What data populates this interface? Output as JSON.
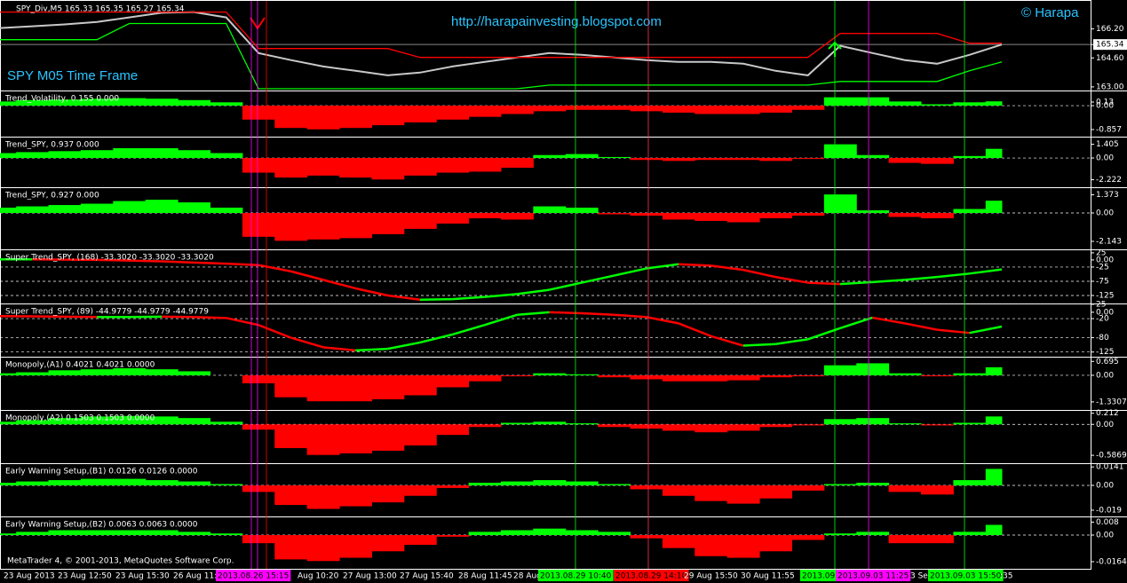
{
  "chart_data": [
    {
      "type": "price",
      "title": "SPY_Div,M5  165.33 165.35 165.27 165.34",
      "annotations": [
        "http://harapainvesting.blogspot.com",
        "© Harapa",
        "SPY M05 Time Frame"
      ],
      "series": [
        {
          "color": "#c8c8c8",
          "values": [
            166.25,
            166.35,
            166.45,
            166.59,
            166.84,
            167.09,
            167.13,
            166.84,
            164.87,
            164.48,
            164.13,
            163.89,
            163.64,
            163.79,
            164.13,
            164.38,
            164.63,
            164.87,
            164.77,
            164.63,
            164.48,
            164.38,
            164.38,
            164.28,
            163.89,
            163.64,
            165.27,
            164.87,
            164.48,
            164.28,
            164.77,
            165.34
          ]
        },
        {
          "color": "#ff0000",
          "values": [
            167.13,
            167.13,
            167.13,
            167.13,
            167.13,
            167.13,
            167.13,
            167.13,
            165.12,
            165.12,
            165.12,
            165.12,
            165.12,
            164.63,
            164.63,
            164.63,
            164.63,
            164.63,
            164.63,
            164.63,
            164.63,
            164.63,
            164.63,
            164.63,
            164.63,
            164.63,
            165.95,
            165.95,
            165.95,
            165.95,
            165.41,
            165.41
          ]
        },
        {
          "color": "#00ff00",
          "values": [
            165.61,
            165.61,
            165.61,
            165.61,
            166.5,
            166.5,
            166.5,
            166.5,
            162.9,
            162.9,
            162.9,
            162.9,
            162.9,
            162.9,
            162.9,
            162.9,
            162.9,
            163.1,
            163.1,
            163.1,
            163.1,
            163.1,
            163.1,
            163.1,
            163.1,
            163.1,
            163.3,
            163.3,
            163.3,
            163.3,
            163.89,
            164.38
          ]
        }
      ],
      "ylim": [
        162.8,
        167.7
      ],
      "yticks": [
        {
          "value": 166.2,
          "label": "166.20"
        },
        165.34,
        {
          "value": 164.6,
          "label": "164.60"
        },
        {
          "value": 163.0,
          "label": "163.00"
        }
      ]
    },
    {
      "type": "bar",
      "title": "Trend_Volatility, 0.155 0.000",
      "colors": {
        "positive": "#00ff00",
        "negative": "#ff0000"
      },
      "values": [
        0.15,
        0.2,
        0.22,
        0.25,
        0.27,
        0.25,
        0.2,
        0.12,
        -0.5,
        -0.8,
        -0.85,
        -0.8,
        -0.7,
        -0.6,
        -0.5,
        -0.4,
        -0.3,
        -0.2,
        -0.15,
        -0.15,
        -0.2,
        -0.25,
        -0.3,
        -0.3,
        -0.25,
        -0.15,
        0.3,
        0.3,
        0.15,
        0.05,
        0.12,
        0.155
      ],
      "ylim": [
        -1.08,
        0.48
      ],
      "yticks": [
        0.13,
        {
          "value": 0,
          "label": "0.00"
        },
        -0.857
      ]
    },
    {
      "type": "bar",
      "title": "Trend_SPY,  0.937 0.000",
      "colors": {
        "positive": "#00ff00",
        "negative": "#ff0000"
      },
      "values": [
        0.5,
        0.6,
        0.7,
        0.8,
        1.0,
        1.0,
        0.8,
        0.5,
        -1.5,
        -2.0,
        -1.8,
        -2.0,
        -2.2,
        -1.8,
        -1.5,
        -1.4,
        -1.0,
        0.3,
        0.4,
        0.1,
        -0.2,
        -0.3,
        -0.2,
        -0.2,
        -0.3,
        -0.1,
        1.4,
        0.3,
        -0.5,
        -0.6,
        0.2,
        0.937
      ],
      "ylim": [
        -2.9,
        2.0
      ],
      "yticks": [
        1.405,
        {
          "value": 0,
          "label": "0.00"
        },
        -2.222
      ]
    },
    {
      "type": "bar",
      "title": "Trend_SPY,  0.927 0.000",
      "colors": {
        "positive": "#00ff00",
        "negative": "#ff0000"
      },
      "values": [
        0.4,
        0.5,
        0.6,
        0.7,
        0.9,
        1.0,
        0.8,
        0.4,
        -1.8,
        -2.1,
        -2.0,
        -1.9,
        -1.6,
        -1.2,
        -0.8,
        -0.4,
        -0.5,
        0.5,
        0.4,
        -0.1,
        -0.2,
        -0.5,
        -0.6,
        -0.7,
        -0.4,
        -0.2,
        1.4,
        0.2,
        -0.3,
        -0.4,
        0.3,
        0.927
      ],
      "ylim": [
        -2.68,
        1.81
      ],
      "yticks": [
        1.373,
        {
          "value": 0,
          "label": "0.00"
        },
        -2.143
      ]
    },
    {
      "type": "trend-line",
      "title": "Super Trend_SPY, (168)  -33.3020 -33.3020 -33.3020",
      "colors": {
        "up": "#00ff00",
        "down": "#ff0000"
      },
      "values": [
        2,
        2,
        1,
        0,
        -2,
        -5,
        -9,
        -13,
        -18,
        -40,
        -70,
        -100,
        -125,
        -140,
        -138,
        -130,
        -120,
        -105,
        -80,
        -55,
        -30,
        -15,
        -20,
        -35,
        -60,
        -80,
        -85,
        -78,
        -70,
        -60,
        -48,
        -33.302
      ],
      "ylim": [
        -150,
        31
      ],
      "yticks": [
        25,
        {
          "value": 0,
          "label": "0.00"
        },
        -25,
        -75,
        -125
      ]
    },
    {
      "type": "trend-line",
      "title": "Super Trend_SPY, (89)  -44.9779 -44.9779 -44.9779",
      "colors": {
        "up": "#00ff00",
        "down": "#ff0000"
      },
      "values": [
        -12,
        -13,
        -14,
        -15,
        -15,
        -14,
        -15,
        -18,
        -40,
        -80,
        -110,
        -120,
        -115,
        -95,
        -70,
        -40,
        -8,
        0,
        -3,
        -8,
        -15,
        -35,
        -75,
        -105,
        -100,
        -85,
        -50,
        -17,
        -35,
        -55,
        -65,
        -44.9779
      ],
      "ylim": [
        -137,
        22
      ],
      "yticks": [
        25,
        {
          "value": 0,
          "label": "0.00"
        },
        -20,
        -80,
        -125
      ]
    },
    {
      "type": "bar",
      "title": "Monopoly,(A1) 0.4021 0.4021 0.0000",
      "colors": {
        "positive": "#00ff00",
        "negative": "#ff0000"
      },
      "values": [
        0.1,
        0.15,
        0.25,
        0.3,
        0.35,
        0.3,
        0.2,
        0.0,
        -0.4,
        -1.1,
        -1.3,
        -1.3,
        -1.2,
        -1.0,
        -0.6,
        -0.3,
        -0.05,
        0.1,
        0.05,
        -0.1,
        -0.2,
        -0.3,
        -0.3,
        -0.25,
        -0.1,
        -0.05,
        0.5,
        0.6,
        0.1,
        -0.05,
        0.1,
        0.4021
      ],
      "ylim": [
        -1.69,
        0.84
      ],
      "yticks": [
        0.695,
        {
          "value": 0,
          "label": "0.00"
        },
        -1.3307
      ]
    },
    {
      "type": "bar",
      "title": "Monopoly,(A2) 0.1503 0.1503 0.0000",
      "colors": {
        "positive": "#00ff00",
        "negative": "#ff0000"
      },
      "values": [
        0.05,
        0.08,
        0.12,
        0.15,
        0.16,
        0.15,
        0.12,
        0.05,
        -0.1,
        -0.45,
        -0.58,
        -0.55,
        -0.5,
        -0.4,
        -0.2,
        -0.05,
        0.03,
        0.05,
        0.02,
        -0.05,
        -0.08,
        -0.12,
        -0.15,
        -0.12,
        -0.05,
        -0.02,
        0.1,
        0.12,
        0.02,
        -0.02,
        0.03,
        0.1503
      ],
      "ylim": [
        -0.72,
        0.24
      ],
      "yticks": [
        0.212,
        {
          "value": 0,
          "label": "0.00"
        },
        -0.5869
      ]
    },
    {
      "type": "bar",
      "title": "Early Warning Setup,(B1) 0.0126 0.0126 0.0000",
      "colors": {
        "positive": "#00ff00",
        "negative": "#ff0000"
      },
      "values": [
        0.002,
        0.003,
        0.004,
        0.005,
        0.005,
        0.004,
        0.003,
        0.001,
        -0.005,
        -0.015,
        -0.018,
        -0.016,
        -0.013,
        -0.008,
        -0.002,
        0.002,
        0.003,
        0.004,
        0.003,
        0.001,
        -0.003,
        -0.008,
        -0.012,
        -0.014,
        -0.01,
        -0.004,
        0.001,
        0.002,
        -0.005,
        -0.007,
        0.004,
        0.0126
      ],
      "ylim": [
        -0.0231,
        0.0156
      ],
      "yticks": [
        0.0141,
        {
          "value": 0,
          "label": "0.00"
        },
        -0.019
      ]
    },
    {
      "type": "bar",
      "title": "Early Warning Setup,(B2) 0.0063 0.0063 0.0000",
      "colors": {
        "positive": "#00ff00",
        "negative": "#ff0000"
      },
      "values": [
        0.001,
        0.002,
        0.003,
        0.003,
        0.003,
        0.003,
        0.002,
        0.001,
        -0.005,
        -0.015,
        -0.016,
        -0.014,
        -0.01,
        -0.006,
        -0.001,
        0.002,
        0.003,
        0.004,
        0.003,
        0.002,
        -0.002,
        -0.008,
        -0.013,
        -0.014,
        -0.01,
        -0.003,
        0.001,
        0.002,
        -0.005,
        -0.005,
        0.002,
        0.0063
      ],
      "ylim": [
        -0.0208,
        0.0104
      ],
      "yticks": [
        0.008,
        {
          "value": 0,
          "label": "0.00"
        },
        -0.0164
      ]
    }
  ],
  "footer": "MetaTrader 4, © 2001-2013, MetaQuotes Software Corp.",
  "time_axis": {
    "labels": [
      "23 Aug 2013",
      "23 Aug 12:50",
      "23 Aug 15:30",
      "26 Aug 11:",
      {
        "text": "2013.08.26 15:15",
        "color": "#ff00ff"
      },
      "Aug 10:20",
      "27 Aug 13:00",
      "27 Aug 15:40",
      "28 Aug 11:45",
      "28 Aug",
      {
        "text": "2013.08.29 10:40",
        "color": "#00ff00"
      },
      {
        "text": "2013.08.29 14:10",
        "color": "#ff0000"
      },
      "29 Aug 15:50",
      "30 Aug 11:55",
      {
        "text": "2013.09",
        "color": "#00ff00"
      },
      {
        "text": "2013.09.03 11:25",
        "color": "#ff00ff"
      },
      "3 Se",
      {
        "text": "2013.09.03 15:50",
        "color": "#00ff00"
      },
      ":35"
    ]
  }
}
